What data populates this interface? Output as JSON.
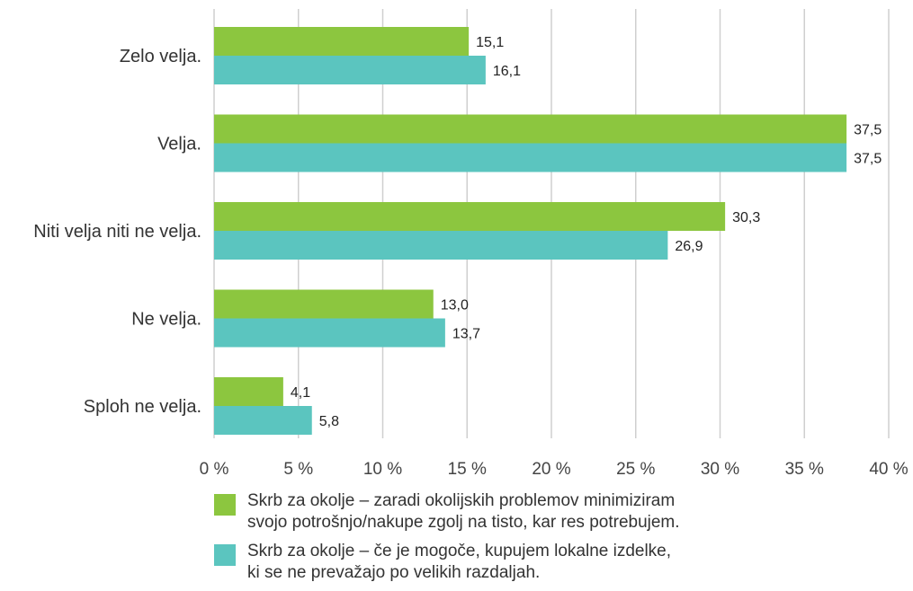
{
  "chart_data": {
    "type": "bar",
    "orientation": "horizontal",
    "categories": [
      "Zelo velja.",
      "Velja.",
      "Niti velja niti ne velja.",
      "Ne velja.",
      "Sploh ne velja."
    ],
    "series": [
      {
        "name_lines": [
          "Skrb za okolje – zaradi okolijskih problemov minimiziram",
          "svojo potrošnjo/nakupe zgolj na tisto, kar res potrebujem."
        ],
        "color": "#8cc63f",
        "values": [
          15.1,
          37.5,
          30.3,
          13.0,
          4.1
        ],
        "value_labels": [
          "15,1",
          "37,5",
          "30,3",
          "13,0",
          "4,1"
        ]
      },
      {
        "name_lines": [
          "Skrb za okolje – če je mogoče, kupujem lokalne izdelke,",
          "ki se ne prevažajo po velikih razdaljah."
        ],
        "color": "#5bc5bf",
        "values": [
          16.1,
          37.5,
          26.9,
          13.7,
          5.8
        ],
        "value_labels": [
          "16,1",
          "37,5",
          "26,9",
          "13,7",
          "5,8"
        ]
      }
    ],
    "xlim": [
      0,
      40
    ],
    "x_ticks": [
      0,
      5,
      10,
      15,
      20,
      25,
      30,
      35,
      40
    ],
    "x_tick_labels": [
      "0 %",
      "5 %",
      "10 %",
      "15 %",
      "20 %",
      "25 %",
      "30 %",
      "35 %",
      "40 %"
    ],
    "grid": "vertical",
    "legend_position": "bottom"
  }
}
